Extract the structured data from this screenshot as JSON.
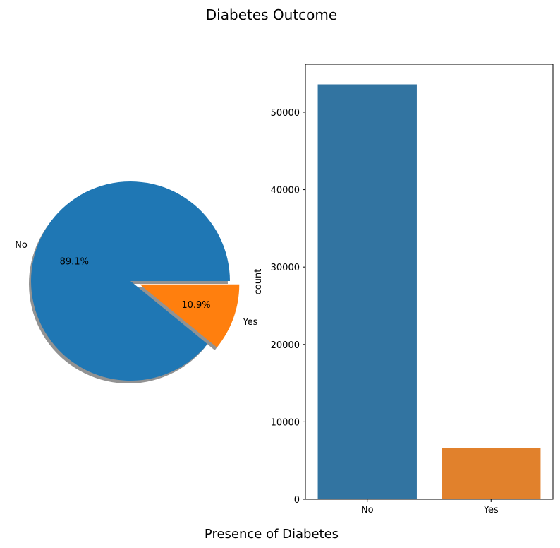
{
  "figure": {
    "title": "Diabetes Outcome",
    "xlabel": "Presence of Diabetes"
  },
  "chart_data": [
    {
      "type": "pie",
      "labels": [
        "No",
        "Yes"
      ],
      "values": [
        89.1,
        10.9
      ],
      "pct_labels": [
        "89.1%",
        "10.9%"
      ],
      "colors": [
        "#1f77b4",
        "#ff7f0e"
      ],
      "explode": [
        0,
        0.1
      ],
      "shadow": true
    },
    {
      "type": "bar",
      "categories": [
        "No",
        "Yes"
      ],
      "values": [
        53600,
        6600
      ],
      "colors": [
        "#3274a1",
        "#e1812c"
      ],
      "xlabel": "",
      "ylabel": "count",
      "ylim": [
        0,
        56200
      ],
      "yticks": [
        0,
        10000,
        20000,
        30000,
        40000,
        50000
      ],
      "ytick_labels": [
        "0",
        "10000",
        "20000",
        "30000",
        "40000",
        "50000"
      ]
    }
  ]
}
